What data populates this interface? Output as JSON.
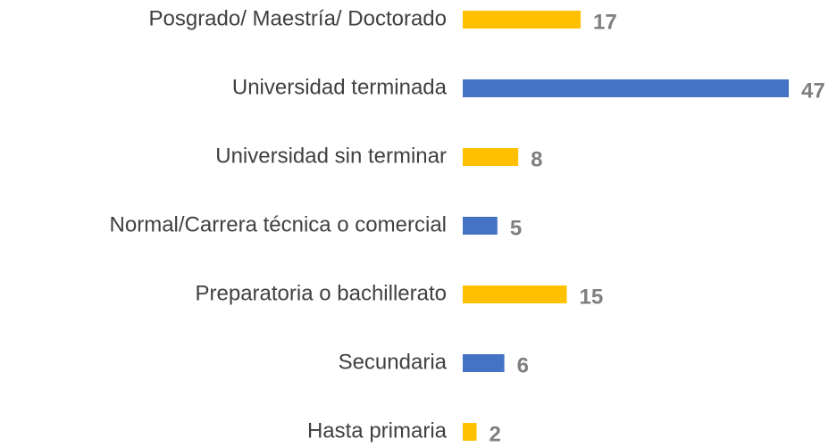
{
  "chart_data": {
    "type": "barh",
    "categories": [
      "Posgrado/ Maestría/ Doctorado",
      "Universidad terminada",
      "Universidad sin terminar",
      "Normal/Carrera técnica o comercial",
      "Preparatoria o bachillerato",
      "Secundaria",
      "Hasta primaria"
    ],
    "values": [
      17,
      47,
      8,
      5,
      15,
      6,
      2
    ],
    "colors": [
      "#FFC000",
      "#4472C4",
      "#FFC000",
      "#4472C4",
      "#FFC000",
      "#4472C4",
      "#FFC000"
    ]
  }
}
